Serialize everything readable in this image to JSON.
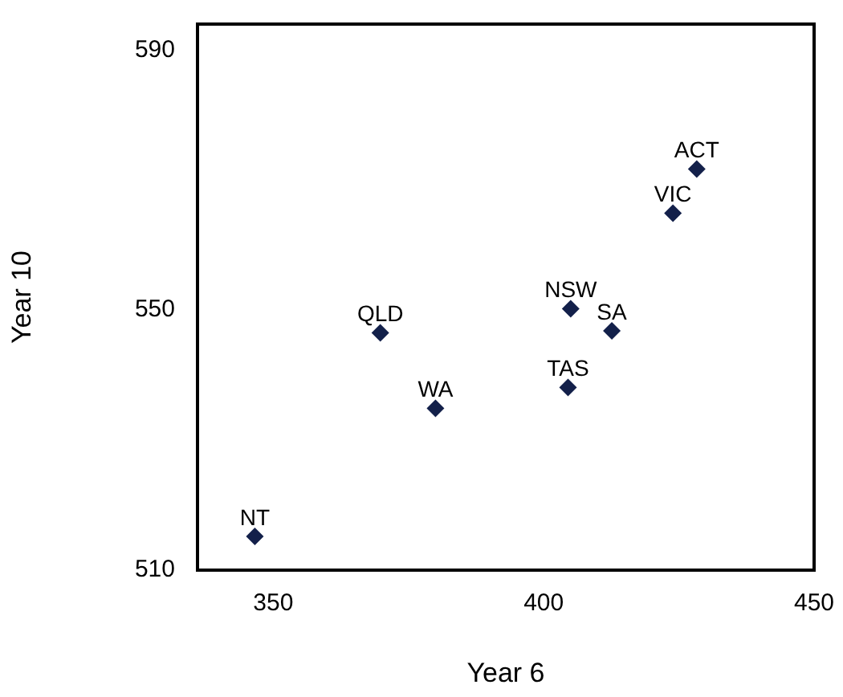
{
  "chart_data": {
    "type": "scatter",
    "xlabel": "Year 6",
    "ylabel": "Year 10",
    "x": [
      346.6,
      369.8,
      380,
      405,
      412.6,
      404.5,
      423.9,
      428.3
    ],
    "values": [
      515.2,
      546.5,
      534.9,
      550.2,
      546.8,
      538.1,
      564.9,
      571.7
    ],
    "color": "#13204a",
    "marker": "diamond",
    "xlim": [
      336,
      450
    ],
    "xticks": [
      350,
      400,
      450
    ],
    "ylim": [
      510,
      594
    ],
    "yticks": [
      510,
      550,
      590
    ],
    "grid": false,
    "legend": false,
    "annotations": [
      {
        "text": "NT",
        "x": 346.6,
        "y": 515.2
      },
      {
        "text": "QLD",
        "x": 369.8,
        "y": 546.5
      },
      {
        "text": "WA",
        "x": 380,
        "y": 534.9
      },
      {
        "text": "NSW",
        "x": 405,
        "y": 550.2
      },
      {
        "text": "SA",
        "x": 412.6,
        "y": 546.8
      },
      {
        "text": "TAS",
        "x": 404.5,
        "y": 538.1
      },
      {
        "text": "VIC",
        "x": 423.9,
        "y": 564.9
      },
      {
        "text": "ACT",
        "x": 428.3,
        "y": 571.7
      }
    ]
  }
}
